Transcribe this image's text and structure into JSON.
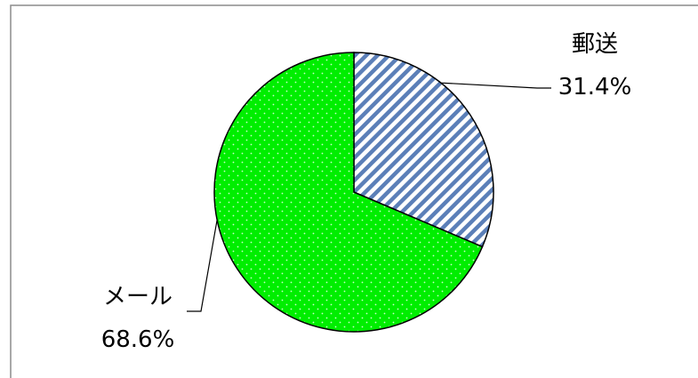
{
  "chart_data": {
    "type": "pie",
    "start_angle_deg": 0,
    "direction": "clockwise",
    "slices": [
      {
        "name": "郵送",
        "value": 31.4,
        "label": "31.4%",
        "color": "#5b7fb8",
        "pattern": "diagonal-stripes"
      },
      {
        "name": "メール",
        "value": 68.6,
        "label": "68.6%",
        "color": "#00ee00",
        "pattern": "dots"
      }
    ]
  }
}
